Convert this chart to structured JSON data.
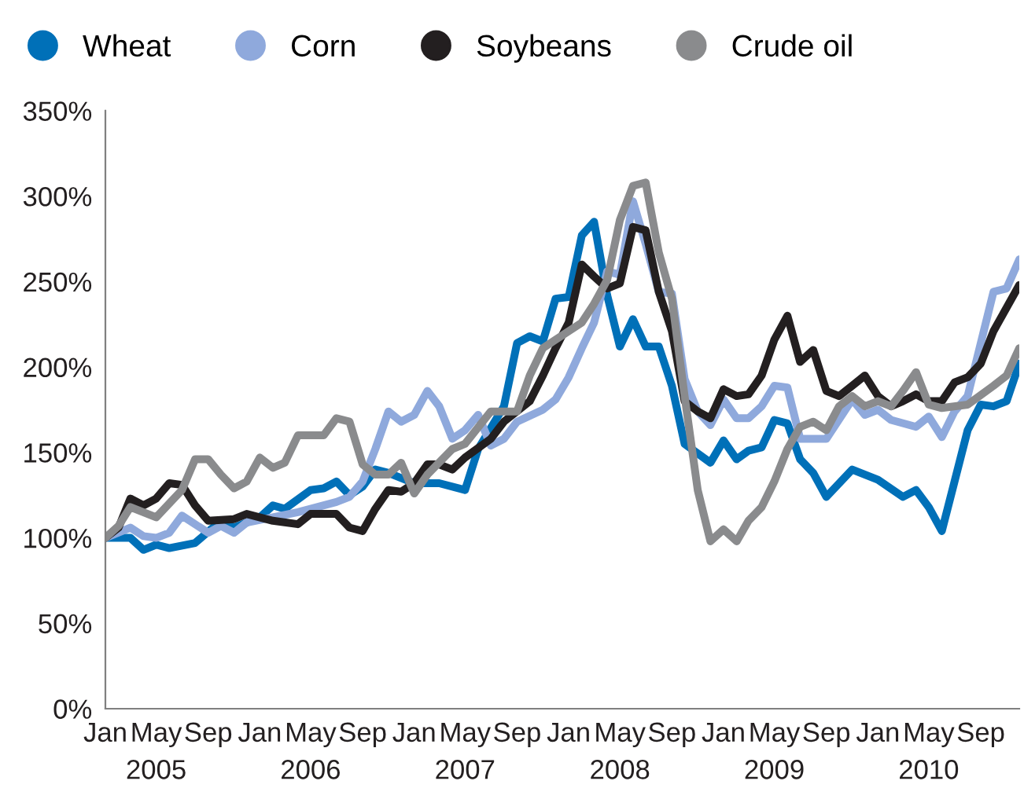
{
  "chart_data": {
    "type": "line",
    "legend": "top left",
    "grid": false,
    "ylim": [
      0,
      350
    ],
    "yticks": [
      {
        "value": 0,
        "label": "0%"
      },
      {
        "value": 50,
        "label": "50%"
      },
      {
        "value": 100,
        "label": "100%"
      },
      {
        "value": 150,
        "label": "150%"
      },
      {
        "value": 200,
        "label": "200%"
      },
      {
        "value": 250,
        "label": "250%"
      },
      {
        "value": 300,
        "label": "300%"
      },
      {
        "value": 350,
        "label": "350%"
      }
    ],
    "xlim": [
      "2005-01",
      "2010-12"
    ],
    "xticks": [
      {
        "value": "2005-01",
        "label": "Jan"
      },
      {
        "value": "2005-05",
        "label": "May\n2005"
      },
      {
        "value": "2005-09",
        "label": "Sep"
      },
      {
        "value": "2006-01",
        "label": "Jan"
      },
      {
        "value": "2006-05",
        "label": "May\n2006"
      },
      {
        "value": "2006-09",
        "label": "Sep"
      },
      {
        "value": "2007-01",
        "label": "Jan"
      },
      {
        "value": "2007-05",
        "label": "May\n2007"
      },
      {
        "value": "2007-09",
        "label": "Sep"
      },
      {
        "value": "2008-01",
        "label": "Jan"
      },
      {
        "value": "2008-05",
        "label": "May\n2008"
      },
      {
        "value": "2008-09",
        "label": "Sep"
      },
      {
        "value": "2009-01",
        "label": "Jan"
      },
      {
        "value": "2009-05",
        "label": "May\n2009"
      },
      {
        "value": "2009-09",
        "label": "Sep"
      },
      {
        "value": "2010-01",
        "label": "Jan"
      },
      {
        "value": "2010-05",
        "label": "May\n2010"
      },
      {
        "value": "2010-09",
        "label": "Sep"
      }
    ],
    "series": [
      {
        "name": "Wheat",
        "color": "#0070b8",
        "x": [
          "2005-01",
          "2005-03",
          "2005-04",
          "2005-05",
          "2005-06",
          "2005-08",
          "2005-10",
          "2005-11",
          "2006-01",
          "2006-02",
          "2006-03",
          "2006-05",
          "2006-06",
          "2006-07",
          "2006-08",
          "2006-09",
          "2006-10",
          "2006-11",
          "2006-12",
          "2007-01",
          "2007-03",
          "2007-05",
          "2007-06",
          "2007-08",
          "2007-09",
          "2007-10",
          "2007-11",
          "2007-12",
          "2008-01",
          "2008-02",
          "2008-03",
          "2008-04",
          "2008-05",
          "2008-06",
          "2008-07",
          "2008-08",
          "2008-09",
          "2008-10",
          "2008-12",
          "2009-01",
          "2009-02",
          "2009-03",
          "2009-04",
          "2009-05",
          "2009-06",
          "2009-07",
          "2009-08",
          "2009-09",
          "2009-11",
          "2010-01",
          "2010-03",
          "2010-04",
          "2010-05",
          "2010-06",
          "2010-07",
          "2010-08",
          "2010-09",
          "2010-10",
          "2010-11",
          "2010-12"
        ],
        "values": [
          100,
          100,
          93,
          96,
          94,
          97,
          110,
          106,
          112,
          119,
          117,
          128,
          129,
          133,
          125,
          130,
          140,
          138,
          135,
          132,
          132,
          128,
          152,
          177,
          214,
          218,
          215,
          240,
          241,
          277,
          285,
          242,
          212,
          228,
          212,
          212,
          189,
          155,
          144,
          157,
          146,
          151,
          153,
          169,
          167,
          146,
          138,
          124,
          140,
          134,
          124,
          128,
          118,
          104,
          133,
          163,
          178,
          177,
          180,
          202
        ]
      },
      {
        "name": "Corn",
        "color": "#8fa9dc",
        "x": [
          "2005-01",
          "2005-03",
          "2005-04",
          "2005-05",
          "2005-06",
          "2005-07",
          "2005-09",
          "2005-10",
          "2005-11",
          "2005-12",
          "2006-02",
          "2006-04",
          "2006-05",
          "2006-07",
          "2006-08",
          "2006-09",
          "2006-10",
          "2006-11",
          "2006-12",
          "2007-01",
          "2007-02",
          "2007-03",
          "2007-04",
          "2007-05",
          "2007-06",
          "2007-07",
          "2007-08",
          "2007-09",
          "2007-11",
          "2007-12",
          "2008-01",
          "2008-02",
          "2008-03",
          "2008-04",
          "2008-05",
          "2008-06",
          "2008-07",
          "2008-08",
          "2008-09",
          "2008-10",
          "2008-11",
          "2008-12",
          "2009-01",
          "2009-02",
          "2009-03",
          "2009-04",
          "2009-05",
          "2009-06",
          "2009-07",
          "2009-09",
          "2009-11",
          "2009-12",
          "2010-01",
          "2010-02",
          "2010-04",
          "2010-05",
          "2010-06",
          "2010-07",
          "2010-08",
          "2010-10",
          "2010-11",
          "2010-12"
        ],
        "values": [
          100,
          106,
          101,
          100,
          103,
          113,
          103,
          107,
          103,
          109,
          112,
          115,
          117,
          121,
          124,
          133,
          152,
          174,
          168,
          172,
          186,
          177,
          158,
          163,
          172,
          154,
          158,
          168,
          175,
          181,
          194,
          211,
          226,
          256,
          254,
          297,
          272,
          244,
          243,
          193,
          174,
          166,
          181,
          170,
          170,
          177,
          189,
          188,
          158,
          158,
          181,
          172,
          175,
          169,
          165,
          171,
          159,
          174,
          183,
          244,
          246,
          263
        ]
      },
      {
        "name": "Soybeans",
        "color": "#231f20",
        "x": [
          "2005-01",
          "2005-02",
          "2005-03",
          "2005-04",
          "2005-05",
          "2005-06",
          "2005-07",
          "2005-08",
          "2005-09",
          "2005-11",
          "2005-12",
          "2006-02",
          "2006-04",
          "2006-05",
          "2006-07",
          "2006-08",
          "2006-09",
          "2006-10",
          "2006-11",
          "2006-12",
          "2007-01",
          "2007-02",
          "2007-03",
          "2007-04",
          "2007-05",
          "2007-07",
          "2007-08",
          "2007-10",
          "2007-11",
          "2007-12",
          "2008-01",
          "2008-02",
          "2008-03",
          "2008-04",
          "2008-05",
          "2008-06",
          "2008-07",
          "2008-08",
          "2008-09",
          "2008-10",
          "2008-11",
          "2008-12",
          "2009-01",
          "2009-02",
          "2009-03",
          "2009-04",
          "2009-05",
          "2009-06",
          "2009-07",
          "2009-08",
          "2009-09",
          "2009-10",
          "2009-11",
          "2009-12",
          "2010-01",
          "2010-02",
          "2010-03",
          "2010-04",
          "2010-05",
          "2010-06",
          "2010-07",
          "2010-08",
          "2010-09",
          "2010-10",
          "2010-12"
        ],
        "values": [
          100,
          106,
          123,
          119,
          123,
          132,
          131,
          119,
          110,
          111,
          114,
          110,
          108,
          114,
          114,
          106,
          104,
          117,
          128,
          127,
          132,
          143,
          143,
          140,
          147,
          158,
          168,
          180,
          195,
          211,
          226,
          260,
          253,
          246,
          249,
          282,
          280,
          244,
          221,
          180,
          174,
          170,
          187,
          183,
          184,
          195,
          216,
          230,
          203,
          210,
          186,
          183,
          189,
          195,
          183,
          177,
          180,
          184,
          180,
          180,
          191,
          194,
          202,
          221,
          248
        ]
      },
      {
        "name": "Crude oil",
        "color": "#8a8b8d",
        "x": [
          "2005-01",
          "2005-02",
          "2005-03",
          "2005-05",
          "2005-07",
          "2005-08",
          "2005-09",
          "2005-10",
          "2005-11",
          "2005-12",
          "2006-01",
          "2006-02",
          "2006-03",
          "2006-04",
          "2006-06",
          "2006-07",
          "2006-08",
          "2006-09",
          "2006-10",
          "2006-11",
          "2006-12",
          "2007-01",
          "2007-02",
          "2007-04",
          "2007-05",
          "2007-07",
          "2007-09",
          "2007-10",
          "2007-11",
          "2007-12",
          "2008-02",
          "2008-03",
          "2008-04",
          "2008-05",
          "2008-06",
          "2008-07",
          "2008-08",
          "2008-09",
          "2008-10",
          "2008-11",
          "2008-12",
          "2009-01",
          "2009-02",
          "2009-03",
          "2009-04",
          "2009-05",
          "2009-06",
          "2009-07",
          "2009-08",
          "2009-09",
          "2009-10",
          "2009-11",
          "2009-12",
          "2010-01",
          "2010-02",
          "2010-03",
          "2010-04",
          "2010-05",
          "2010-06",
          "2010-08",
          "2010-10",
          "2010-11",
          "2010-12"
        ],
        "values": [
          100,
          107,
          118,
          112,
          128,
          146,
          146,
          137,
          129,
          133,
          147,
          141,
          144,
          160,
          160,
          170,
          168,
          143,
          137,
          137,
          144,
          126,
          137,
          152,
          155,
          174,
          174,
          195,
          211,
          216,
          226,
          237,
          251,
          286,
          306,
          308,
          267,
          240,
          183,
          128,
          98,
          105,
          98,
          110,
          118,
          133,
          152,
          165,
          168,
          163,
          177,
          183,
          177,
          180,
          177,
          186,
          197,
          178,
          176,
          178,
          189,
          195,
          211
        ]
      }
    ]
  }
}
